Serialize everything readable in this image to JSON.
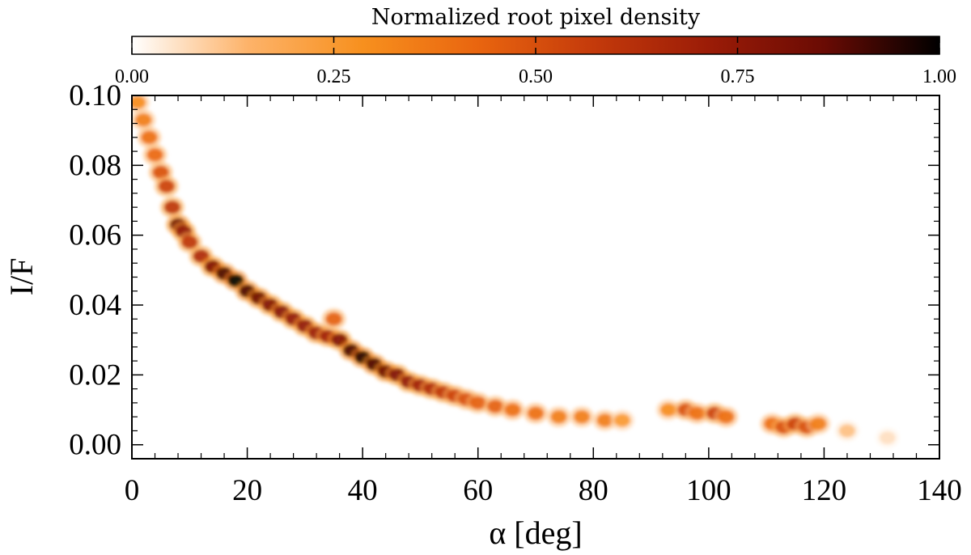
{
  "chart_data": {
    "type": "heatmap",
    "title": "",
    "xlabel": "α [deg]",
    "ylabel": "I/F",
    "xlim": [
      0,
      140
    ],
    "ylim": [
      -0.004,
      0.1
    ],
    "x_ticks": [
      "0",
      "20",
      "40",
      "60",
      "80",
      "100",
      "120",
      "140"
    ],
    "y_ticks": [
      "0.00",
      "0.02",
      "0.04",
      "0.06",
      "0.08",
      "0.10"
    ],
    "colorbar": {
      "label": "Normalized root pixel density",
      "range": [
        0,
        1
      ],
      "ticks": [
        "0.00",
        "0.25",
        "0.50",
        "0.75",
        "1.00"
      ],
      "colors": [
        "#ffffff",
        "#fdb36a",
        "#f7901e",
        "#e9650f",
        "#c43a0b",
        "#9b1c07",
        "#6a0b04",
        "#000000"
      ],
      "placement": "top"
    },
    "density_points": [
      {
        "x": 1,
        "y": 0.098,
        "d": 0.3
      },
      {
        "x": 2,
        "y": 0.093,
        "d": 0.35
      },
      {
        "x": 3,
        "y": 0.088,
        "d": 0.4
      },
      {
        "x": 4,
        "y": 0.083,
        "d": 0.42
      },
      {
        "x": 5,
        "y": 0.078,
        "d": 0.5
      },
      {
        "x": 6,
        "y": 0.074,
        "d": 0.55
      },
      {
        "x": 7,
        "y": 0.068,
        "d": 0.6
      },
      {
        "x": 8,
        "y": 0.063,
        "d": 0.85
      },
      {
        "x": 9,
        "y": 0.061,
        "d": 0.75
      },
      {
        "x": 10,
        "y": 0.058,
        "d": 0.6
      },
      {
        "x": 12,
        "y": 0.054,
        "d": 0.65
      },
      {
        "x": 14,
        "y": 0.051,
        "d": 0.8
      },
      {
        "x": 16,
        "y": 0.049,
        "d": 0.9
      },
      {
        "x": 18,
        "y": 0.047,
        "d": 1.0
      },
      {
        "x": 20,
        "y": 0.044,
        "d": 0.9
      },
      {
        "x": 22,
        "y": 0.042,
        "d": 0.85
      },
      {
        "x": 24,
        "y": 0.04,
        "d": 0.8
      },
      {
        "x": 26,
        "y": 0.038,
        "d": 0.78
      },
      {
        "x": 28,
        "y": 0.036,
        "d": 0.75
      },
      {
        "x": 30,
        "y": 0.034,
        "d": 0.75
      },
      {
        "x": 32,
        "y": 0.032,
        "d": 0.72
      },
      {
        "x": 34,
        "y": 0.031,
        "d": 0.7
      },
      {
        "x": 35,
        "y": 0.036,
        "d": 0.45
      },
      {
        "x": 36,
        "y": 0.03,
        "d": 0.8
      },
      {
        "x": 38,
        "y": 0.027,
        "d": 0.9
      },
      {
        "x": 40,
        "y": 0.025,
        "d": 0.95
      },
      {
        "x": 42,
        "y": 0.023,
        "d": 0.9
      },
      {
        "x": 44,
        "y": 0.021,
        "d": 0.85
      },
      {
        "x": 46,
        "y": 0.02,
        "d": 0.8
      },
      {
        "x": 48,
        "y": 0.018,
        "d": 0.75
      },
      {
        "x": 50,
        "y": 0.017,
        "d": 0.7
      },
      {
        "x": 52,
        "y": 0.016,
        "d": 0.65
      },
      {
        "x": 54,
        "y": 0.015,
        "d": 0.6
      },
      {
        "x": 56,
        "y": 0.014,
        "d": 0.55
      },
      {
        "x": 58,
        "y": 0.013,
        "d": 0.5
      },
      {
        "x": 60,
        "y": 0.012,
        "d": 0.45
      },
      {
        "x": 63,
        "y": 0.011,
        "d": 0.45
      },
      {
        "x": 66,
        "y": 0.01,
        "d": 0.4
      },
      {
        "x": 70,
        "y": 0.009,
        "d": 0.4
      },
      {
        "x": 74,
        "y": 0.008,
        "d": 0.35
      },
      {
        "x": 78,
        "y": 0.008,
        "d": 0.35
      },
      {
        "x": 82,
        "y": 0.007,
        "d": 0.35
      },
      {
        "x": 85,
        "y": 0.007,
        "d": 0.25
      },
      {
        "x": 93,
        "y": 0.01,
        "d": 0.3
      },
      {
        "x": 96,
        "y": 0.01,
        "d": 0.5
      },
      {
        "x": 98,
        "y": 0.009,
        "d": 0.4
      },
      {
        "x": 101,
        "y": 0.009,
        "d": 0.55
      },
      {
        "x": 103,
        "y": 0.008,
        "d": 0.4
      },
      {
        "x": 111,
        "y": 0.006,
        "d": 0.4
      },
      {
        "x": 113,
        "y": 0.005,
        "d": 0.5
      },
      {
        "x": 115,
        "y": 0.006,
        "d": 0.55
      },
      {
        "x": 117,
        "y": 0.005,
        "d": 0.5
      },
      {
        "x": 119,
        "y": 0.006,
        "d": 0.35
      },
      {
        "x": 124,
        "y": 0.004,
        "d": 0.12
      },
      {
        "x": 131,
        "y": 0.002,
        "d": 0.06
      }
    ]
  }
}
